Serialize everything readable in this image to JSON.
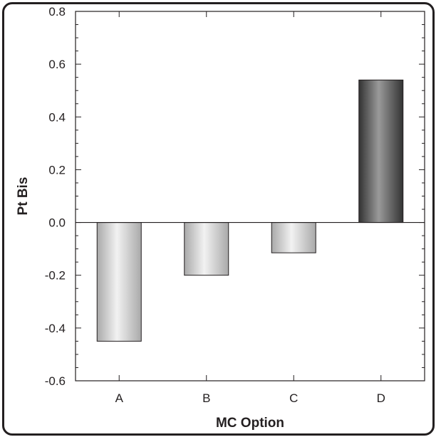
{
  "chart_data": {
    "type": "bar",
    "title": "",
    "xlabel": "MC Option",
    "ylabel": "Pt Bis",
    "categories": [
      "A",
      "B",
      "C",
      "D"
    ],
    "values": [
      -0.45,
      -0.2,
      -0.115,
      0.54
    ],
    "ylim": [
      -0.6,
      0.8
    ],
    "yticks": [
      "-0.6",
      "-0.4",
      "-0.2",
      "0.0",
      "0.2",
      "0.4",
      "0.6",
      "0.8"
    ],
    "ytick_values": [
      -0.6,
      -0.4,
      -0.2,
      0.0,
      0.2,
      0.4,
      0.6,
      0.8
    ],
    "grid": false,
    "legend": "none",
    "bar_colors": {
      "A": "#c4c4c4",
      "B": "#c4c4c4",
      "C": "#c4c4c4",
      "D": "#4a4a4a"
    }
  }
}
